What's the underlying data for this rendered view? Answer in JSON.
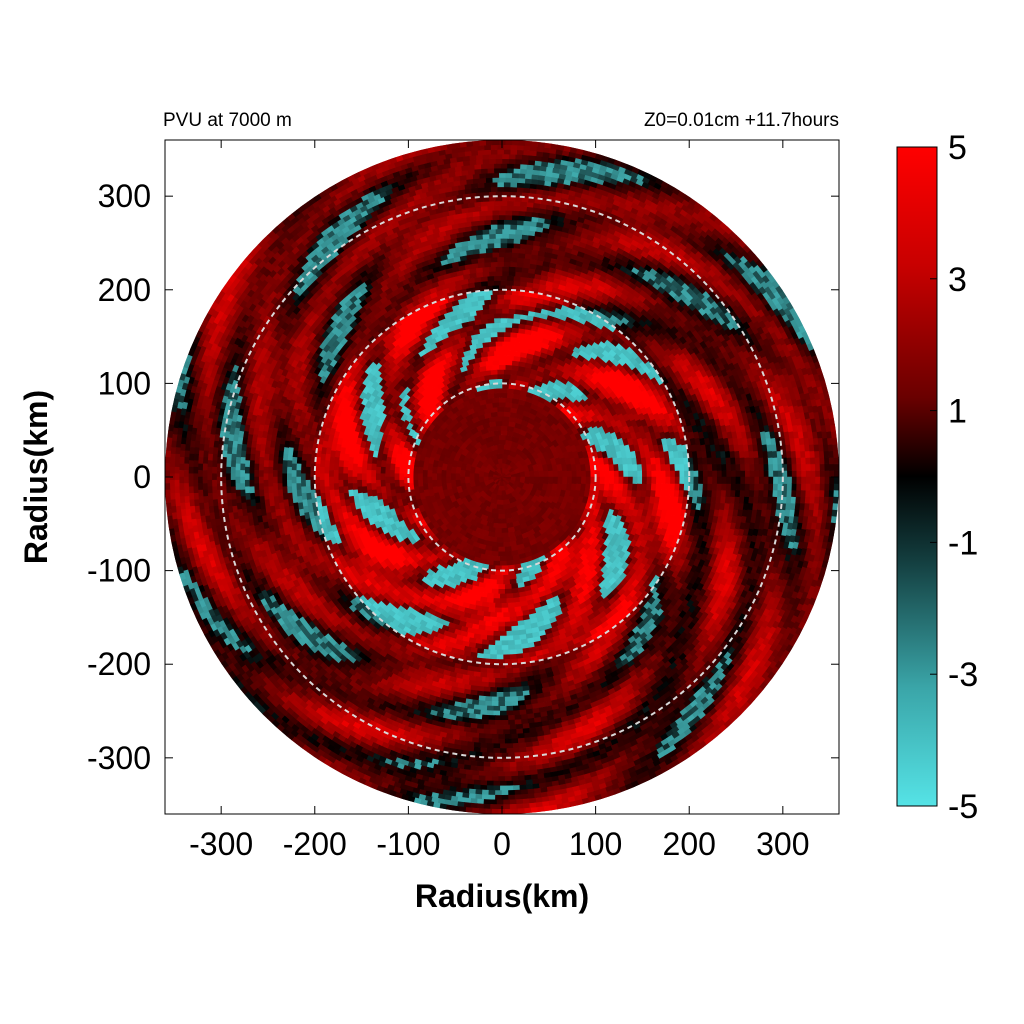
{
  "header": {
    "left_title": "PVU at  7000 m",
    "right_title": "Z0=0.01cm  +11.7hours"
  },
  "chart_data": {
    "type": "heatmap",
    "projection": "polar field on cartesian radius axes",
    "xlabel": "Radius(km)",
    "ylabel": "Radius(km)",
    "xlim": [
      -360,
      360
    ],
    "ylim": [
      -360,
      360
    ],
    "x_ticks": [
      -300,
      -200,
      -100,
      0,
      100,
      200,
      300
    ],
    "y_ticks": [
      300,
      200,
      100,
      0,
      -100,
      -200,
      -300
    ],
    "x_tick_labels": [
      "-300",
      "-200",
      "-100",
      "0",
      "100",
      "200",
      "300"
    ],
    "y_tick_labels": [
      "300",
      "200",
      "100",
      "0",
      "-100",
      "-200",
      "-300"
    ],
    "domain_radius_km": 360,
    "reference_circles_km": [
      100,
      200,
      300
    ],
    "reference_circle_color": "#d9d9d9",
    "field": "PVU",
    "colorbar": {
      "min": -5,
      "max": 5,
      "tick_values": [
        5,
        3,
        1,
        -1,
        -3,
        -5
      ],
      "tick_labels": [
        "5",
        "3",
        "1",
        "-1",
        "-3",
        "-5"
      ],
      "colors": {
        "high": "#ff0000",
        "mid": "#000000",
        "low": "#55e3e6"
      }
    },
    "grid": false,
    "legend": "colorbar-right"
  }
}
